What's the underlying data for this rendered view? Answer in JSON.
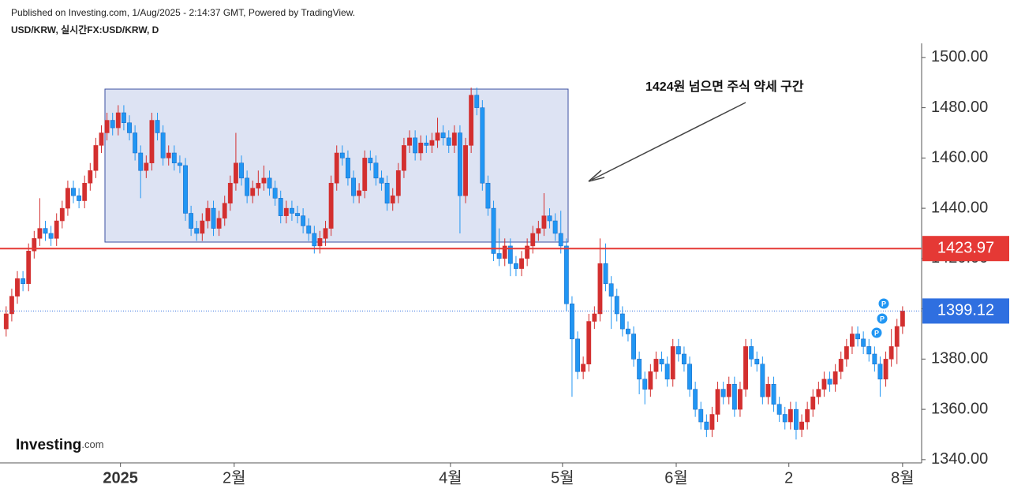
{
  "header": {
    "published": "Published on Investing.com, 1/Aug/2025 - 2:14:37 GMT, Powered by TradingView.",
    "symbol": "USD/KRW, 실시간FX:USD/KRW, D"
  },
  "logo": [
    "Investing",
    ".com"
  ],
  "chart_data": {
    "type": "candlestick",
    "annotation": "1424원 넘으면 주식 약세 구간",
    "up_color": "#d32f2f",
    "down_color": "#2196f3",
    "xlim": [
      -1.1,
      163.4
    ],
    "ylim": [
      1338.7,
      1505.6
    ],
    "yticks": [
      {
        "value": 1340,
        "label": "1340.00"
      },
      {
        "value": 1360,
        "label": "1360.00"
      },
      {
        "value": 1380,
        "label": "1380.00"
      },
      {
        "value": 1400,
        "label": "1400.00"
      },
      {
        "value": 1420,
        "label": "1420.00"
      },
      {
        "value": 1440,
        "label": "1440.00"
      },
      {
        "value": 1460,
        "label": "1460.00"
      },
      {
        "value": 1480,
        "label": "1480.00"
      },
      {
        "value": 1500,
        "label": "1500.00"
      }
    ],
    "xticks": [
      {
        "value": 20.4,
        "label": "2025"
      },
      {
        "value": 40.7,
        "label": "2월"
      },
      {
        "value": 79.3,
        "label": "4월"
      },
      {
        "value": 99.3,
        "label": "5월"
      },
      {
        "value": 119.6,
        "label": "6월"
      },
      {
        "value": 139.7,
        "label": "2"
      },
      {
        "value": 160,
        "label": "8월"
      }
    ],
    "levels": [
      {
        "value": 1423.97,
        "color": "#e53935",
        "style": "solid"
      },
      {
        "value": 1399.12,
        "color": "#2f6fe0",
        "style": "dotted"
      }
    ],
    "markers": [
      "P",
      "P",
      "P"
    ],
    "candles": [
      [
        1392,
        1401,
        1389,
        1398
      ],
      [
        1398,
        1408,
        1395,
        1405
      ],
      [
        1405,
        1415,
        1402,
        1412
      ],
      [
        1412,
        1415,
        1407,
        1410
      ],
      [
        1410,
        1426,
        1407,
        1423
      ],
      [
        1423,
        1431,
        1420,
        1428
      ],
      [
        1428,
        1444,
        1425,
        1432
      ],
      [
        1432,
        1435,
        1427,
        1430
      ],
      [
        1430,
        1433,
        1425,
        1428
      ],
      [
        1428,
        1438,
        1425,
        1435
      ],
      [
        1435,
        1443,
        1432,
        1440
      ],
      [
        1440,
        1451,
        1437,
        1448
      ],
      [
        1448,
        1451,
        1442,
        1445
      ],
      [
        1445,
        1448,
        1440,
        1443
      ],
      [
        1443,
        1453,
        1440,
        1450
      ],
      [
        1450,
        1458,
        1447,
        1455
      ],
      [
        1455,
        1468,
        1452,
        1465
      ],
      [
        1465,
        1473,
        1462,
        1470
      ],
      [
        1470,
        1478,
        1467,
        1475
      ],
      [
        1475,
        1478,
        1469,
        1472
      ],
      [
        1472,
        1481,
        1469,
        1478
      ],
      [
        1478,
        1481,
        1471,
        1474
      ],
      [
        1474,
        1477,
        1467,
        1470
      ],
      [
        1470,
        1473,
        1459,
        1462
      ],
      [
        1462,
        1465,
        1444,
        1455
      ],
      [
        1455,
        1461,
        1452,
        1458
      ],
      [
        1458,
        1478,
        1455,
        1475
      ],
      [
        1475,
        1478,
        1467,
        1470
      ],
      [
        1470,
        1473,
        1457,
        1460
      ],
      [
        1460,
        1465,
        1457,
        1462
      ],
      [
        1462,
        1465,
        1455,
        1458
      ],
      [
        1458,
        1461,
        1454,
        1457
      ],
      [
        1457,
        1460,
        1435,
        1438
      ],
      [
        1438,
        1441,
        1429,
        1432
      ],
      [
        1432,
        1435,
        1427,
        1430
      ],
      [
        1430,
        1438,
        1427,
        1435
      ],
      [
        1435,
        1443,
        1432,
        1440
      ],
      [
        1440,
        1443,
        1429,
        1432
      ],
      [
        1432,
        1439,
        1429,
        1436
      ],
      [
        1436,
        1445,
        1433,
        1442
      ],
      [
        1442,
        1453,
        1439,
        1450
      ],
      [
        1450,
        1470,
        1447,
        1458
      ],
      [
        1458,
        1461,
        1449,
        1452
      ],
      [
        1452,
        1455,
        1442,
        1445
      ],
      [
        1445,
        1451,
        1442,
        1448
      ],
      [
        1448,
        1455,
        1445,
        1450
      ],
      [
        1450,
        1457,
        1447,
        1452
      ],
      [
        1452,
        1455,
        1445,
        1448
      ],
      [
        1448,
        1451,
        1441,
        1444
      ],
      [
        1444,
        1447,
        1434,
        1437
      ],
      [
        1437,
        1443,
        1434,
        1440
      ],
      [
        1440,
        1443,
        1435,
        1438
      ],
      [
        1438,
        1441,
        1434,
        1437
      ],
      [
        1437,
        1440,
        1430,
        1433
      ],
      [
        1433,
        1436,
        1427,
        1430
      ],
      [
        1430,
        1433,
        1422,
        1425
      ],
      [
        1425,
        1431,
        1422,
        1428
      ],
      [
        1428,
        1435,
        1425,
        1432
      ],
      [
        1432,
        1453,
        1429,
        1450
      ],
      [
        1450,
        1465,
        1447,
        1462
      ],
      [
        1462,
        1465,
        1457,
        1460
      ],
      [
        1460,
        1463,
        1449,
        1452
      ],
      [
        1452,
        1455,
        1442,
        1445
      ],
      [
        1445,
        1450,
        1442,
        1447
      ],
      [
        1447,
        1463,
        1444,
        1460
      ],
      [
        1460,
        1463,
        1455,
        1458
      ],
      [
        1458,
        1461,
        1449,
        1452
      ],
      [
        1452,
        1455,
        1447,
        1450
      ],
      [
        1450,
        1453,
        1439,
        1442
      ],
      [
        1442,
        1448,
        1439,
        1445
      ],
      [
        1445,
        1458,
        1442,
        1455
      ],
      [
        1455,
        1468,
        1452,
        1465
      ],
      [
        1465,
        1471,
        1462,
        1468
      ],
      [
        1468,
        1471,
        1459,
        1462
      ],
      [
        1462,
        1469,
        1459,
        1466
      ],
      [
        1466,
        1469,
        1462,
        1465
      ],
      [
        1465,
        1470,
        1462,
        1467
      ],
      [
        1467,
        1476,
        1464,
        1470
      ],
      [
        1470,
        1473,
        1465,
        1468
      ],
      [
        1468,
        1471,
        1462,
        1465
      ],
      [
        1465,
        1473,
        1462,
        1470
      ],
      [
        1470,
        1473,
        1430,
        1445
      ],
      [
        1445,
        1468,
        1442,
        1465
      ],
      [
        1465,
        1488,
        1462,
        1485
      ],
      [
        1485,
        1488,
        1477,
        1480
      ],
      [
        1480,
        1483,
        1447,
        1450
      ],
      [
        1450,
        1453,
        1437,
        1440
      ],
      [
        1440,
        1443,
        1419,
        1422
      ],
      [
        1422,
        1432,
        1417,
        1420
      ],
      [
        1420,
        1428,
        1417,
        1425
      ],
      [
        1425,
        1428,
        1413,
        1418
      ],
      [
        1418,
        1421,
        1413,
        1416
      ],
      [
        1416,
        1423,
        1413,
        1420
      ],
      [
        1420,
        1428,
        1417,
        1425
      ],
      [
        1425,
        1433,
        1422,
        1430
      ],
      [
        1430,
        1435,
        1427,
        1432
      ],
      [
        1432,
        1446,
        1429,
        1437
      ],
      [
        1437,
        1440,
        1432,
        1435
      ],
      [
        1435,
        1438,
        1427,
        1430
      ],
      [
        1430,
        1439,
        1422,
        1425
      ],
      [
        1425,
        1428,
        1399,
        1402
      ],
      [
        1402,
        1405,
        1365,
        1388
      ],
      [
        1388,
        1391,
        1372,
        1375
      ],
      [
        1375,
        1381,
        1372,
        1378
      ],
      [
        1378,
        1398,
        1375,
        1395
      ],
      [
        1395,
        1401,
        1392,
        1398
      ],
      [
        1398,
        1428,
        1395,
        1418
      ],
      [
        1418,
        1426,
        1407,
        1410
      ],
      [
        1410,
        1413,
        1392,
        1405
      ],
      [
        1405,
        1408,
        1395,
        1398
      ],
      [
        1398,
        1401,
        1389,
        1392
      ],
      [
        1392,
        1395,
        1387,
        1390
      ],
      [
        1390,
        1393,
        1377,
        1380
      ],
      [
        1380,
        1383,
        1366,
        1372
      ],
      [
        1372,
        1375,
        1362,
        1368
      ],
      [
        1368,
        1378,
        1365,
        1375
      ],
      [
        1375,
        1383,
        1372,
        1380
      ],
      [
        1380,
        1383,
        1375,
        1378
      ],
      [
        1378,
        1381,
        1369,
        1372
      ],
      [
        1372,
        1388,
        1369,
        1385
      ],
      [
        1385,
        1388,
        1379,
        1382
      ],
      [
        1382,
        1385,
        1375,
        1378
      ],
      [
        1378,
        1381,
        1365,
        1368
      ],
      [
        1368,
        1371,
        1357,
        1360
      ],
      [
        1360,
        1363,
        1352,
        1355
      ],
      [
        1355,
        1358,
        1349,
        1352
      ],
      [
        1352,
        1361,
        1349,
        1358
      ],
      [
        1358,
        1371,
        1355,
        1368
      ],
      [
        1368,
        1371,
        1362,
        1365
      ],
      [
        1365,
        1373,
        1362,
        1370
      ],
      [
        1370,
        1373,
        1357,
        1360
      ],
      [
        1360,
        1371,
        1357,
        1368
      ],
      [
        1368,
        1388,
        1365,
        1385
      ],
      [
        1385,
        1388,
        1377,
        1380
      ],
      [
        1380,
        1383,
        1375,
        1378
      ],
      [
        1378,
        1381,
        1362,
        1365
      ],
      [
        1365,
        1373,
        1362,
        1370
      ],
      [
        1370,
        1373,
        1359,
        1362
      ],
      [
        1362,
        1365,
        1355,
        1358
      ],
      [
        1358,
        1361,
        1352,
        1355
      ],
      [
        1355,
        1363,
        1352,
        1360
      ],
      [
        1360,
        1363,
        1348,
        1352
      ],
      [
        1352,
        1358,
        1349,
        1355
      ],
      [
        1355,
        1363,
        1352,
        1360
      ],
      [
        1360,
        1368,
        1357,
        1365
      ],
      [
        1365,
        1371,
        1362,
        1368
      ],
      [
        1368,
        1375,
        1365,
        1372
      ],
      [
        1372,
        1375,
        1367,
        1370
      ],
      [
        1370,
        1378,
        1367,
        1375
      ],
      [
        1375,
        1383,
        1372,
        1380
      ],
      [
        1380,
        1388,
        1377,
        1385
      ],
      [
        1385,
        1393,
        1382,
        1390
      ],
      [
        1390,
        1393,
        1385,
        1388
      ],
      [
        1388,
        1391,
        1382,
        1385
      ],
      [
        1385,
        1388,
        1379,
        1382
      ],
      [
        1382,
        1385,
        1375,
        1378
      ],
      [
        1378,
        1381,
        1365,
        1372
      ],
      [
        1372,
        1383,
        1369,
        1380
      ],
      [
        1380,
        1392,
        1377,
        1385
      ],
      [
        1385,
        1396,
        1378,
        1393
      ],
      [
        1393,
        1401,
        1390,
        1399.12
      ]
    ]
  }
}
